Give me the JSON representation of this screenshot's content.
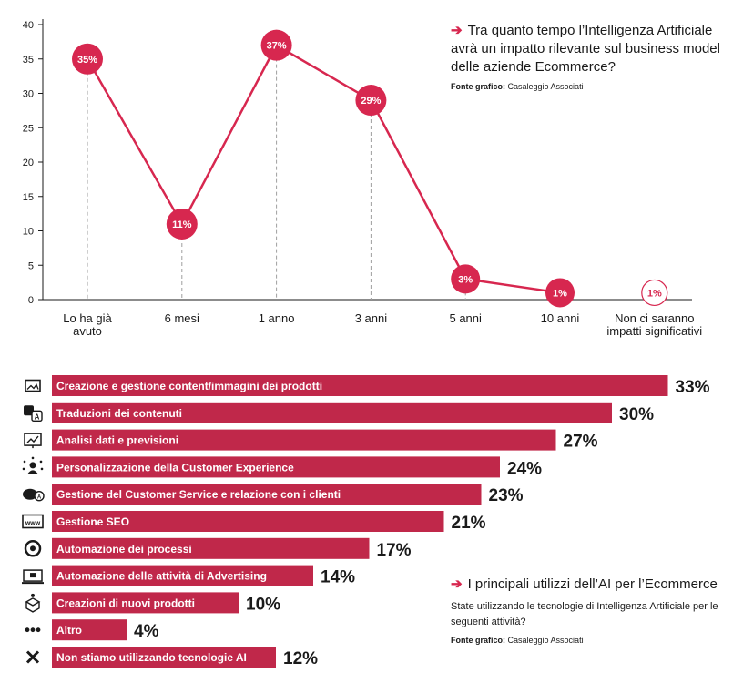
{
  "colors": {
    "accent": "#d7274f",
    "bar": "#c0284a",
    "grid": "#9e9e9e"
  },
  "line_panel": {
    "title": "Tra quanto tempo l’Intelligenza Artificiale avrà un impatto rilevante sul business model delle aziende Ecommerce?",
    "source_label": "Fonte grafico:",
    "source_value": "Casaleggio Associati"
  },
  "bar_panel": {
    "title": "I principali utilizzi dell’AI per l’Ecommerce",
    "subtitle": "State utilizzando le tecnologie di Intelligenza Artificiale per le seguenti attività?",
    "source_label": "Fonte grafico:",
    "source_value": "Casaleggio Associati"
  },
  "chart_data": [
    {
      "type": "line",
      "categories": [
        "Lo ha già avuto",
        "6 mesi",
        "1 anno",
        "3 anni",
        "5 anni",
        "10 anni",
        "Non ci saranno impatti significativi"
      ],
      "values": [
        35,
        11,
        37,
        29,
        3,
        1,
        1
      ],
      "labels": [
        "35%",
        "11%",
        "37%",
        "29%",
        "3%",
        "1%",
        "1%"
      ],
      "ylim": [
        0,
        40
      ],
      "yticks": [
        0,
        5,
        10,
        15,
        20,
        25,
        30,
        35,
        40
      ],
      "connected_points": 6,
      "grid": false
    },
    {
      "type": "bar",
      "orientation": "horizontal",
      "categories": [
        "Creazione e gestione content/immagini dei prodotti",
        "Traduzioni dei contenuti",
        "Analisi dati e previsioni",
        "Personalizzazione della Customer Experience",
        "Gestione del Customer Service e relazione con i clienti",
        "Gestione SEO",
        "Automazione dei processi",
        "Automazione delle attività di Advertising",
        "Creazioni di nuovi prodotti",
        "Altro",
        "Non stiamo utilizzando tecnologie AI"
      ],
      "values": [
        33,
        30,
        27,
        24,
        23,
        21,
        17,
        14,
        10,
        4,
        12
      ],
      "labels": [
        "33%",
        "30%",
        "27%",
        "24%",
        "23%",
        "21%",
        "17%",
        "14%",
        "10%",
        "4%",
        "12%"
      ],
      "icons": [
        "image-icon",
        "translate-icon",
        "analytics-icon",
        "personalization-icon",
        "customer-service-icon",
        "www-icon",
        "automation-icon",
        "advertising-icon",
        "new-product-icon",
        "more-icon",
        "close-icon"
      ]
    }
  ]
}
